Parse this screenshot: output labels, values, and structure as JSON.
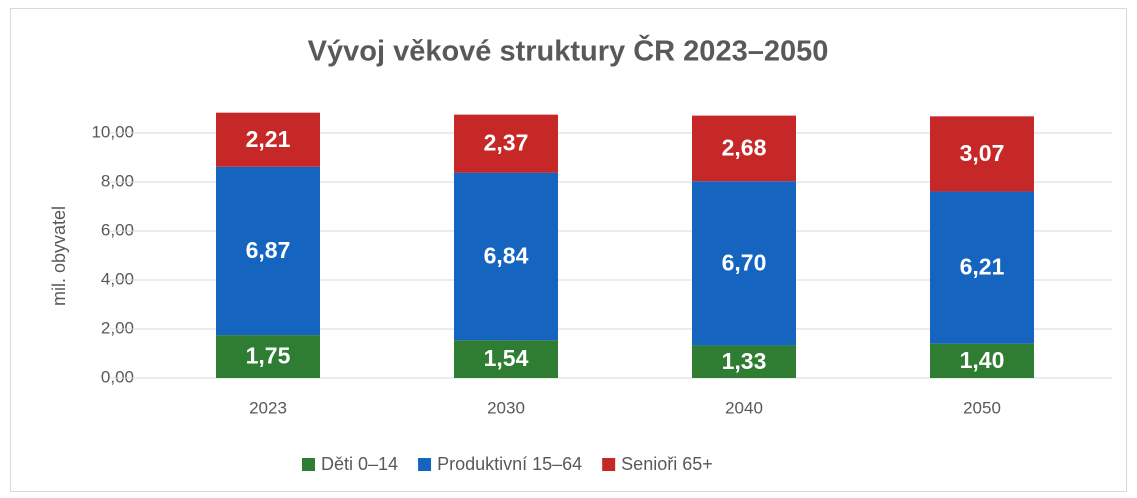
{
  "chart_data": {
    "type": "stacked_bar",
    "title": "Vývoj věkové struktury ČR 2023–2050",
    "y_label": "mil. obyvatel",
    "categories": [
      "2023",
      "2030",
      "2040",
      "2050"
    ],
    "series": [
      {
        "name": "Děti 0–14",
        "color": "#2e7d32",
        "values": [
          1.75,
          1.54,
          1.33,
          1.4
        ],
        "value_labels": [
          "1,75",
          "1,54",
          "1,33",
          "1,40"
        ]
      },
      {
        "name": "Produktivní 15–64",
        "color": "#1565c0",
        "values": [
          6.87,
          6.84,
          6.7,
          6.21
        ],
        "value_labels": [
          "6,87",
          "6,84",
          "6,70",
          "6,21"
        ]
      },
      {
        "name": "Senioři 65+",
        "color": "#c62828",
        "values": [
          2.21,
          2.37,
          2.68,
          3.07
        ],
        "value_labels": [
          "2,21",
          "2,37",
          "2,68",
          "3,07"
        ]
      }
    ],
    "ylim": [
      0,
      11
    ],
    "yticks": [
      {
        "value": 0,
        "label": "0,00"
      },
      {
        "value": 2,
        "label": "2,00"
      },
      {
        "value": 4,
        "label": "4,00"
      },
      {
        "value": 6,
        "label": "6,00"
      },
      {
        "value": 8,
        "label": "8,00"
      },
      {
        "value": 10,
        "label": "10,00"
      }
    ],
    "grid": true,
    "legend": "bottom"
  }
}
